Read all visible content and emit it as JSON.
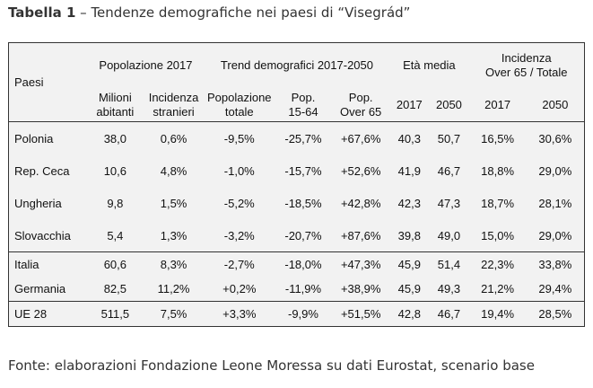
{
  "caption": {
    "label": "Tabella 1",
    "text": " – Tendenze demografiche nei paesi di “Visegrád”"
  },
  "table": {
    "group_headers": {
      "paesi": "Paesi",
      "popolazione": "Popolazione 2017",
      "trend": "Trend demografici 2017-2050",
      "eta": "Età media",
      "incidenza_line1": "Incidenza",
      "incidenza_line2": "Over 65 / Totale"
    },
    "sub_headers": {
      "milioni_1": "Milioni",
      "milioni_2": "abitanti",
      "stranieri_1": "Incidenza",
      "stranieri_2": "stranieri",
      "poptot_1": "Popolazione",
      "poptot_2": "totale",
      "pop1564_1": "Pop.",
      "pop1564_2": "15-64",
      "popover_1": "Pop.",
      "popover_2": "Over 65",
      "eta2017": "2017",
      "eta2050": "2050",
      "inc2017": "2017",
      "inc2050": "2050"
    },
    "rows": [
      {
        "paese": "Polonia",
        "milioni": "38,0",
        "stranieri": "0,6%",
        "pop_totale": "-9,5%",
        "pop_1564": "-25,7%",
        "pop_over65": "+67,6%",
        "eta_2017": "40,3",
        "eta_2050": "50,7",
        "inc_2017": "16,5%",
        "inc_2050": "30,6%"
      },
      {
        "paese": "Rep. Ceca",
        "milioni": "10,6",
        "stranieri": "4,8%",
        "pop_totale": "-1,0%",
        "pop_1564": "-15,7%",
        "pop_over65": "+52,6%",
        "eta_2017": "41,9",
        "eta_2050": "46,7",
        "inc_2017": "18,8%",
        "inc_2050": "29,0%"
      },
      {
        "paese": "Ungheria",
        "milioni": "9,8",
        "stranieri": "1,5%",
        "pop_totale": "-5,2%",
        "pop_1564": "-18,5%",
        "pop_over65": "+42,8%",
        "eta_2017": "42,3",
        "eta_2050": "47,3",
        "inc_2017": "18,7%",
        "inc_2050": "28,1%"
      },
      {
        "paese": "Slovacchia",
        "milioni": "5,4",
        "stranieri": "1,3%",
        "pop_totale": "-3,2%",
        "pop_1564": "-20,7%",
        "pop_over65": "+87,6%",
        "eta_2017": "39,8",
        "eta_2050": "49,0",
        "inc_2017": "15,0%",
        "inc_2050": "29,0%"
      },
      {
        "paese": "Italia",
        "milioni": "60,6",
        "stranieri": "8,3%",
        "pop_totale": "-2,7%",
        "pop_1564": "-18,0%",
        "pop_over65": "+47,3%",
        "eta_2017": "45,9",
        "eta_2050": "51,4",
        "inc_2017": "22,3%",
        "inc_2050": "33,8%"
      },
      {
        "paese": "Germania",
        "milioni": "82,5",
        "stranieri": "11,2%",
        "pop_totale": "+0,2%",
        "pop_1564": "-11,9%",
        "pop_over65": "+38,9%",
        "eta_2017": "45,9",
        "eta_2050": "49,3",
        "inc_2017": "21,2%",
        "inc_2050": "29,4%"
      },
      {
        "paese": "UE 28",
        "milioni": "511,5",
        "stranieri": "7,5%",
        "pop_totale": "+3,3%",
        "pop_1564": "-9,9%",
        "pop_over65": "+51,5%",
        "eta_2017": "42,8",
        "eta_2050": "46,7",
        "inc_2017": "19,4%",
        "inc_2050": "28,5%"
      }
    ]
  },
  "footer": "Fonte: elaborazioni Fondazione Leone Moressa su dati Eurostat, scenario base"
}
